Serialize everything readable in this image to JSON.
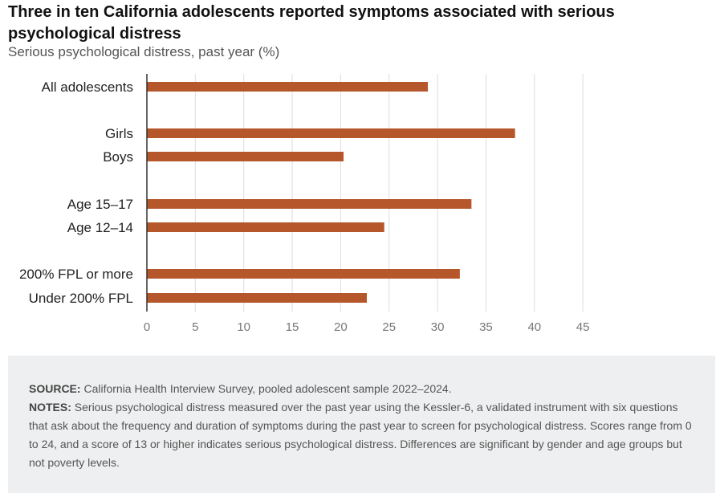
{
  "title": "Three in ten California adolescents reported symptoms associated with serious psychological distress",
  "subtitle": "Serious psychological distress, past year (%)",
  "chart_data": {
    "type": "bar",
    "orientation": "horizontal",
    "categories": [
      "All adolescents",
      "Girls",
      "Boys",
      "Age 15–17",
      "Age 12–14",
      "200% FPL or more",
      "Under 200% FPL"
    ],
    "groups": [
      [
        0
      ],
      [
        1,
        2
      ],
      [
        3,
        4
      ],
      [
        5,
        6
      ]
    ],
    "values": [
      29,
      38,
      20.3,
      33.5,
      24.5,
      32.3,
      22.7
    ],
    "xlim": [
      0,
      45
    ],
    "xticks": [
      0,
      5,
      10,
      15,
      20,
      25,
      30,
      35,
      40,
      45
    ],
    "grid": true,
    "bar_color": "#b5562b",
    "title": "Three in ten California adolescents reported symptoms associated with serious psychological distress",
    "xlabel": "",
    "ylabel": ""
  },
  "notes": {
    "source_label": "SOURCE:",
    "source_text": "California Health Interview Survey, pooled adolescent sample 2022–2024.",
    "notes_label": "NOTES:",
    "notes_text": "Serious psychological distress measured over the past year using the Kessler-6, a validated instrument with six questions that ask about the frequency and duration of symptoms during the past year to screen for psychological distress. Scores range from 0 to 24, and a score of 13 or higher indicates serious psychological distress. Differences are significant by gender and age groups but not poverty levels."
  },
  "colors": {
    "bar": "#b5562b",
    "grid": "#dddddd",
    "axis": "#333333",
    "notes_bg": "#eeeff0"
  }
}
